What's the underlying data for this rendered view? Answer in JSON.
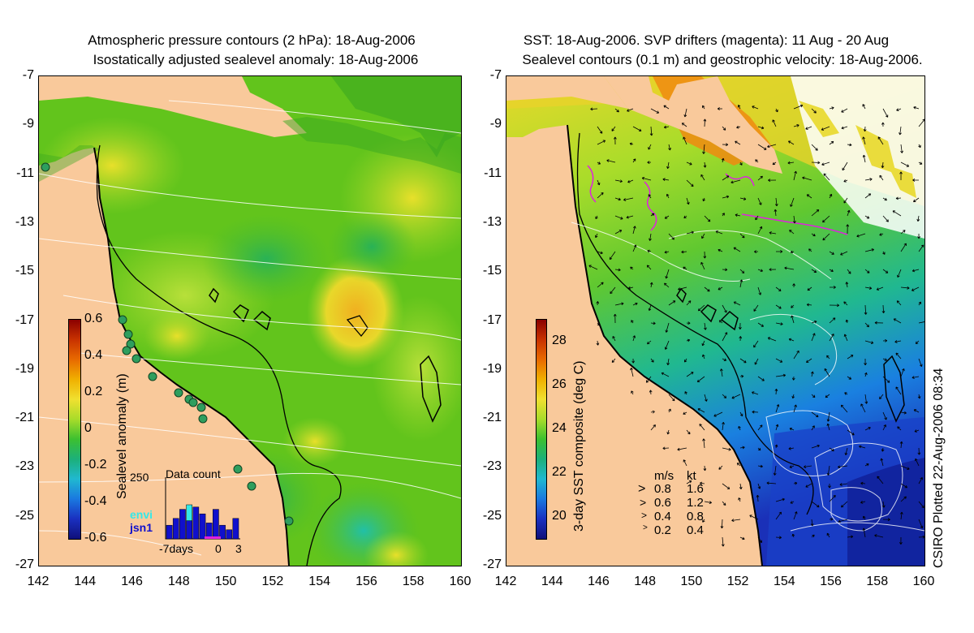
{
  "left_panel": {
    "title_line1": "Atmospheric pressure contours (2 hPa): 18-Aug-2006",
    "title_line2": "Isostatically adjusted sealevel anomaly: 18-Aug-2006",
    "y_ticks": [
      "-7",
      "-9",
      "-11",
      "-13",
      "-15",
      "-17",
      "-19",
      "-21",
      "-23",
      "-25",
      "-27"
    ],
    "x_ticks": [
      "142",
      "144",
      "146",
      "148",
      "150",
      "152",
      "154",
      "156",
      "158",
      "160"
    ],
    "colorbar_label": "Sealevel anomaly (m)",
    "colorbar_ticks": [
      "0.6",
      "0.4",
      "0.2",
      "0",
      "-0.2",
      "-0.4",
      "-0.6"
    ],
    "inset": {
      "title": "Data count",
      "y_max": "250",
      "legend_envi": "envi",
      "legend_jsn1": "jsn1",
      "x_left": "-7days",
      "x_zero": "0",
      "x_right": "3",
      "chart_data": {
        "type": "bar",
        "series": [
          {
            "name": "envi",
            "values": [
              0,
              0,
              0,
              150,
              0,
              0,
              0,
              0,
              0,
              0,
              0
            ]
          },
          {
            "name": "jsn1",
            "values": [
              60,
              90,
              130,
              80,
              140,
              110,
              70,
              130,
              60,
              40,
              90
            ]
          }
        ]
      }
    }
  },
  "right_panel": {
    "title_line1": "SST: 18-Aug-2006. SVP drifters (magenta): 11 Aug - 20 Aug",
    "title_line2": "Sealevel contours (0.1 m) and geostrophic velocity: 18-Aug-2006.",
    "y_ticks": [
      "-7",
      "-9",
      "-11",
      "-13",
      "-15",
      "-17",
      "-19",
      "-21",
      "-23",
      "-25",
      "-27"
    ],
    "x_ticks": [
      "142",
      "144",
      "146",
      "148",
      "150",
      "152",
      "154",
      "156",
      "158",
      "160"
    ],
    "colorbar_label": "3-day SST composite (deg C)",
    "colorbar_ticks": [
      "28",
      "26",
      "24",
      "22",
      "20"
    ],
    "velocity_legend": {
      "header_ms": "m/s",
      "header_kt": "kt",
      "rows": [
        {
          "ms": "0.8",
          "kt": "1.6"
        },
        {
          "ms": "0.6",
          "kt": "1.2"
        },
        {
          "ms": "0.4",
          "kt": "0.8"
        },
        {
          "ms": "0.2",
          "kt": "0.4"
        }
      ]
    }
  },
  "credit": "CSIRO Plotted 22-Aug-2006 08:34",
  "colors": {
    "land": "#f9c99b",
    "ocean_mid": "#5cc21a",
    "ocean_light": "#a8dc2a",
    "ocean_teal": "#2fb56e",
    "cold": "#1a40c8",
    "envi": "#33e8e8",
    "jsn1": "#1010cc",
    "drifter": "#e020e0"
  }
}
